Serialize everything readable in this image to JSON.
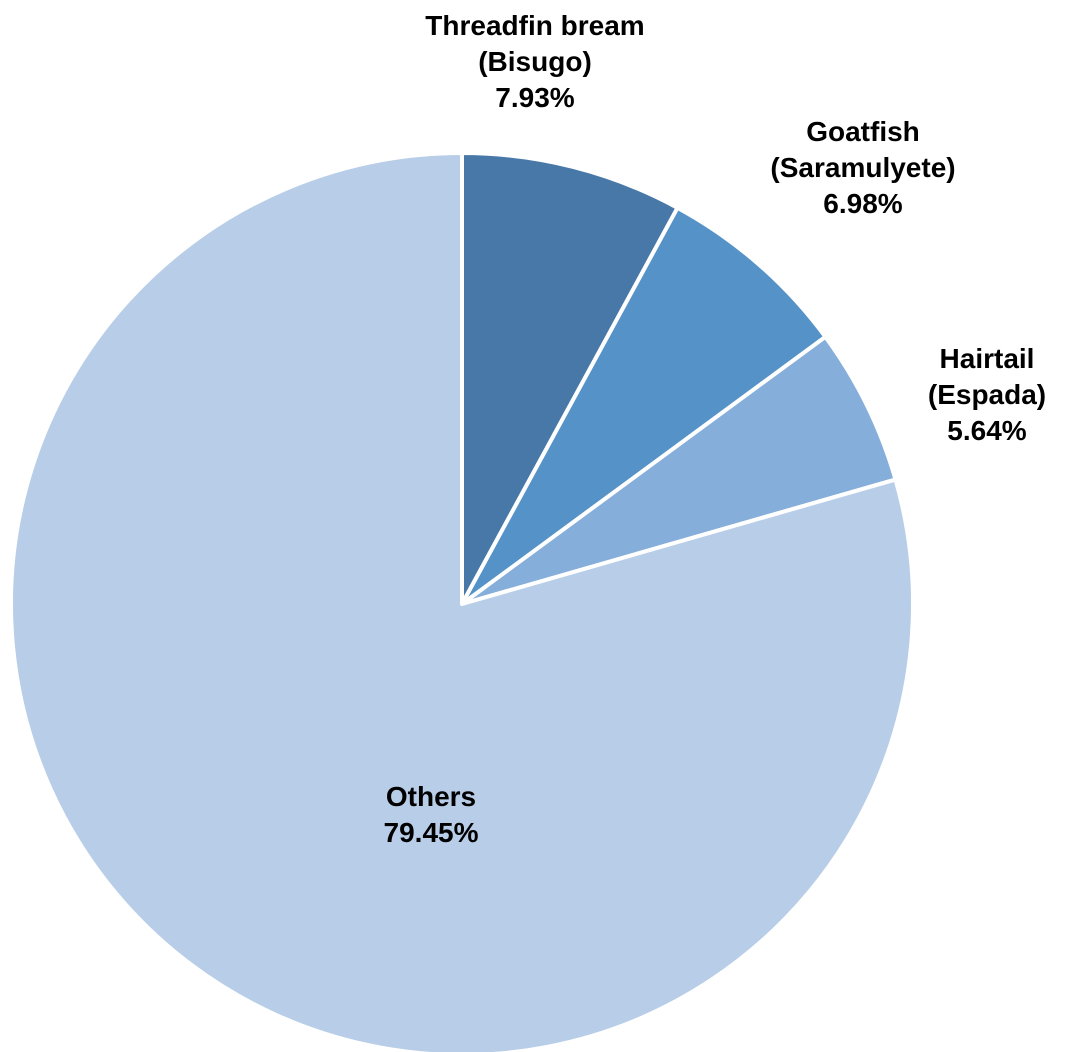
{
  "chart_data": {
    "type": "pie",
    "title": "",
    "start_angle_deg": 0,
    "direction": "clockwise",
    "slices": [
      {
        "name": "Threadfin bream",
        "subname": "(Bisugo)",
        "value": 7.93,
        "label": "7.93%",
        "color": "#4878a8"
      },
      {
        "name": "Goatfish",
        "subname": "(Saramulyete)",
        "value": 6.98,
        "label": "6.98%",
        "color": "#5592c8"
      },
      {
        "name": "Hairtail",
        "subname": "(Espada)",
        "value": 5.64,
        "label": "5.64%",
        "color": "#86aedb"
      },
      {
        "name": "Others",
        "subname": "",
        "value": 79.45,
        "label": "79.45%",
        "color": "#b8cde7"
      }
    ],
    "legend": "none",
    "label_position": "outside for small slices, inside for Others"
  }
}
